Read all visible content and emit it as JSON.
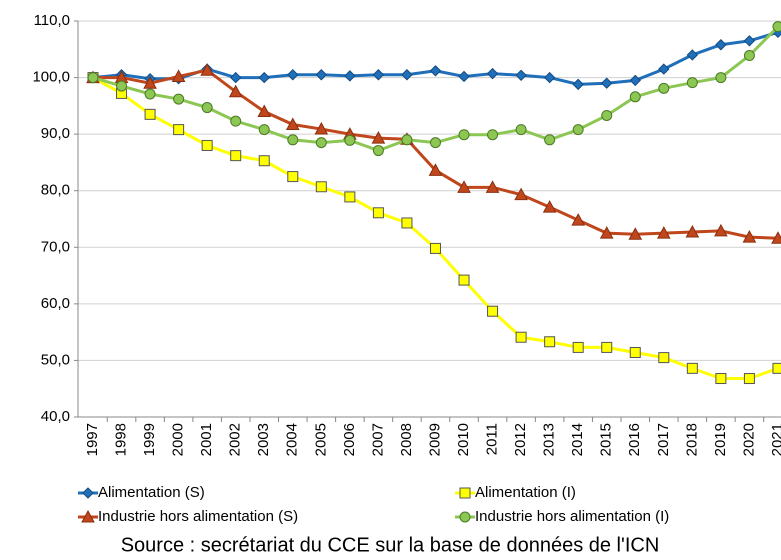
{
  "chart_data": {
    "type": "line",
    "categories": [
      "1997",
      "1998",
      "1999",
      "2000",
      "2001",
      "2002",
      "2003",
      "2004",
      "2005",
      "2006",
      "2007",
      "2008",
      "2009",
      "2010",
      "2011",
      "2012",
      "2013",
      "2014",
      "2015",
      "2016",
      "2017",
      "2018",
      "2019",
      "2020",
      "2021"
    ],
    "series": [
      {
        "name": "Alimentation (S)",
        "color": "#1f6fba",
        "marker": "diamond",
        "values": [
          100,
          100.5,
          99.8,
          99.8,
          101.5,
          100,
          100,
          100.5,
          100.5,
          100.3,
          100.5,
          100.5,
          101.2,
          100.2,
          100.7,
          100.4,
          100,
          98.8,
          99,
          99.5,
          101.5,
          104,
          105.8,
          106.5,
          108
        ]
      },
      {
        "name": "Alimentation (I)",
        "color": "#ffff00",
        "marker": "square",
        "values": [
          100,
          97.2,
          93.5,
          90.8,
          88,
          86.2,
          85.3,
          82.5,
          80.7,
          78.9,
          76.1,
          74.3,
          69.8,
          64.2,
          58.7,
          54.1,
          53.3,
          52.3,
          52.3,
          51.4,
          50.5,
          48.6,
          46.8,
          46.8,
          48.6
        ]
      },
      {
        "name": "Industrie hors alimentation (S)",
        "color": "#c0461b",
        "marker": "triangle",
        "values": [
          100,
          100,
          99,
          100.2,
          101.3,
          97.5,
          94,
          91.7,
          90.9,
          90,
          89.3,
          89.1,
          83.6,
          80.6,
          80.6,
          79.3,
          77.1,
          74.8,
          72.5,
          72.3,
          72.5,
          72.7,
          72.9,
          71.8,
          71.6
        ]
      },
      {
        "name": "Industrie hors alimentation (I)",
        "color": "#8cc653",
        "marker": "circle",
        "values": [
          100,
          98.5,
          97.1,
          96.2,
          94.7,
          92.3,
          90.8,
          89,
          88.5,
          88.9,
          87.1,
          89,
          88.5,
          89.9,
          89.9,
          90.8,
          89,
          90.8,
          93.3,
          96.6,
          98.1,
          99.1,
          100,
          103.9,
          109
        ]
      }
    ],
    "ylim": [
      40,
      110
    ],
    "yticks": [
      {
        "value": 40,
        "label": "40,0"
      },
      {
        "value": 50,
        "label": "50,0"
      },
      {
        "value": 60,
        "label": "60,0"
      },
      {
        "value": 70,
        "label": "70,0"
      },
      {
        "value": 80,
        "label": "80,0"
      },
      {
        "value": 90,
        "label": "90,0"
      },
      {
        "value": 100,
        "label": "100,0"
      },
      {
        "value": 110,
        "label": "110,0"
      }
    ],
    "grid": true,
    "legend": "bottom",
    "source": "Source : secrétariat du CCE sur la base de données de l'ICN"
  }
}
